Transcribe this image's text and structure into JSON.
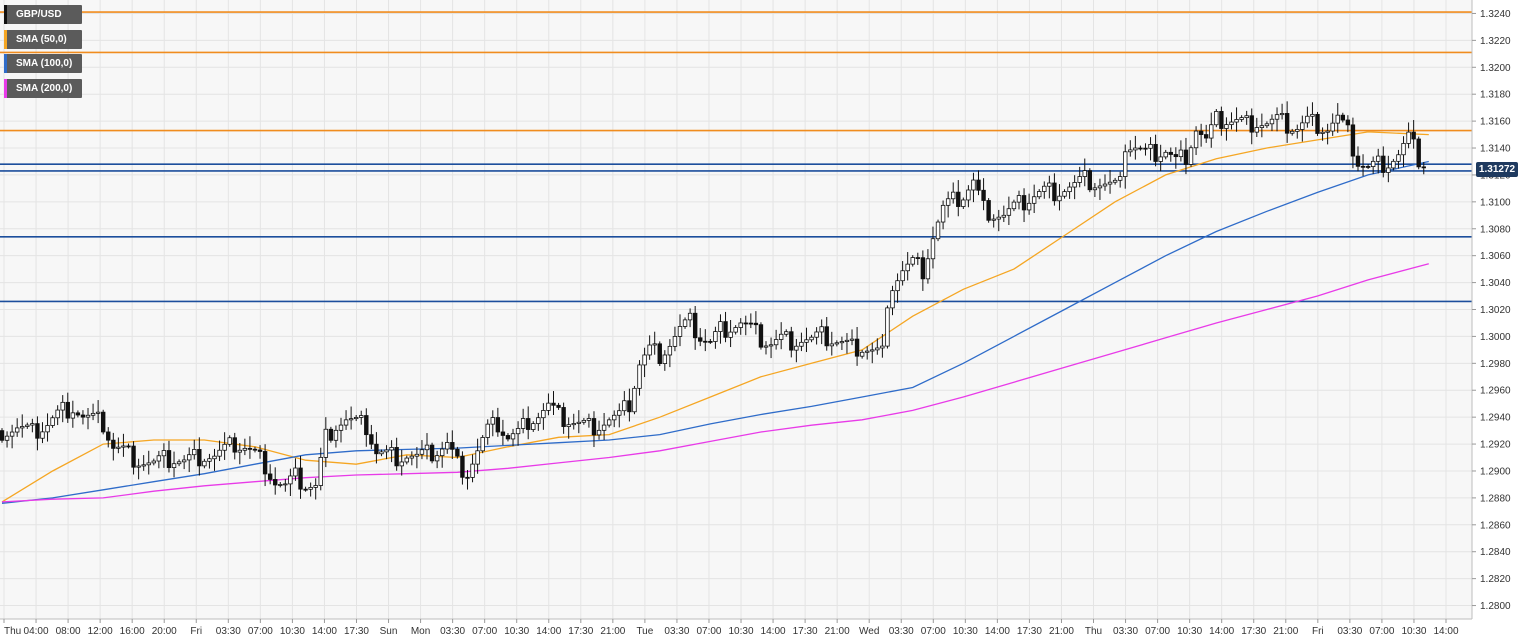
{
  "instrument": "GBP/USD",
  "colors": {
    "background": "#f7f7f7",
    "grid": "#e4e4e4",
    "candle": "#111111",
    "resistance": "#f08c1e",
    "support": "#1c4e9c",
    "sma50": "#f5a623",
    "sma100": "#2f6cc9",
    "sma200": "#e83be8",
    "price_tag": "#1f3a5f"
  },
  "legend": [
    {
      "label": "GBP/USD",
      "color": "#111111"
    },
    {
      "label": "SMA (50,0)",
      "color": "#f5a623"
    },
    {
      "label": "SMA (100,0)",
      "color": "#2f6cc9"
    },
    {
      "label": "SMA (200,0)",
      "color": "#e83be8"
    }
  ],
  "current_price_label": "1.31272",
  "chart_data": {
    "type": "line",
    "title": "",
    "xlabel": "",
    "ylabel": "",
    "ylim": [
      1.279,
      1.325
    ],
    "grid": true,
    "legend_position": "top-left",
    "x_tick_labels": [
      "Thu",
      "04:00",
      "08:00",
      "12:00",
      "16:00",
      "20:00",
      "Fri",
      "03:30",
      "07:00",
      "10:30",
      "14:00",
      "17:30",
      "Sun",
      "Mon",
      "03:30",
      "07:00",
      "10:30",
      "14:00",
      "17:30",
      "21:00",
      "Tue",
      "03:30",
      "07:00",
      "10:30",
      "14:00",
      "17:30",
      "21:00",
      "Wed",
      "03:30",
      "07:00",
      "10:30",
      "14:00",
      "17:30",
      "21:00",
      "Thu",
      "03:30",
      "07:00",
      "10:30",
      "14:00",
      "17:30",
      "21:00",
      "Fri",
      "03:30",
      "07:00",
      "10:30",
      "14:00"
    ],
    "y_tick_labels": [
      "1.3240",
      "1.3220",
      "1.3200",
      "1.3180",
      "1.3160",
      "1.3140",
      "1.3120",
      "1.3100",
      "1.3080",
      "1.3060",
      "1.3040",
      "1.3020",
      "1.3000",
      "1.2980",
      "1.2960",
      "1.2940",
      "1.2920",
      "1.2900",
      "1.2880",
      "1.2860",
      "1.2840",
      "1.2820",
      "1.2800"
    ],
    "y_ticks": [
      1.324,
      1.322,
      1.32,
      1.318,
      1.316,
      1.314,
      1.312,
      1.31,
      1.308,
      1.306,
      1.304,
      1.302,
      1.3,
      1.298,
      1.296,
      1.294,
      1.292,
      1.29,
      1.288,
      1.286,
      1.284,
      1.282,
      1.28
    ],
    "horizontal_levels": [
      {
        "value": 1.3241,
        "kind": "resistance"
      },
      {
        "value": 1.3211,
        "kind": "resistance"
      },
      {
        "value": 1.3153,
        "kind": "resistance"
      },
      {
        "value": 1.3128,
        "kind": "support"
      },
      {
        "value": 1.3123,
        "kind": "support"
      },
      {
        "value": 1.3074,
        "kind": "support"
      },
      {
        "value": 1.3026,
        "kind": "support"
      }
    ],
    "close_series": [
      [
        0,
        1.293
      ],
      [
        3,
        1.2932
      ],
      [
        6,
        1.2928
      ],
      [
        9,
        1.2935
      ],
      [
        12,
        1.2945
      ],
      [
        14,
        1.2948
      ],
      [
        16,
        1.294
      ],
      [
        18,
        1.2938
      ],
      [
        20,
        1.2935
      ],
      [
        22,
        1.2918
      ],
      [
        24,
        1.2915
      ],
      [
        26,
        1.291
      ],
      [
        28,
        1.2907
      ],
      [
        30,
        1.2905
      ],
      [
        32,
        1.2908
      ],
      [
        34,
        1.2909
      ],
      [
        36,
        1.2907
      ],
      [
        38,
        1.291
      ],
      [
        40,
        1.2912
      ],
      [
        42,
        1.2911
      ],
      [
        44,
        1.2915
      ],
      [
        46,
        1.292
      ],
      [
        48,
        1.2918
      ],
      [
        50,
        1.2912
      ],
      [
        52,
        1.2905
      ],
      [
        54,
        1.2892
      ],
      [
        56,
        1.2888
      ],
      [
        58,
        1.2895
      ],
      [
        60,
        1.289
      ],
      [
        62,
        1.2888
      ],
      [
        64,
        1.2925
      ],
      [
        66,
        1.2935
      ],
      [
        68,
        1.2938
      ],
      [
        70,
        1.2935
      ],
      [
        72,
        1.2933
      ],
      [
        74,
        1.2914
      ],
      [
        76,
        1.2912
      ],
      [
        78,
        1.2911
      ],
      [
        80,
        1.2912
      ],
      [
        82,
        1.291
      ],
      [
        84,
        1.2912
      ],
      [
        86,
        1.2915
      ],
      [
        88,
        1.292
      ],
      [
        90,
        1.2905
      ],
      [
        92,
        1.29
      ],
      [
        94,
        1.2915
      ],
      [
        96,
        1.293
      ],
      [
        98,
        1.2935
      ],
      [
        100,
        1.2925
      ],
      [
        102,
        1.2928
      ],
      [
        104,
        1.2938
      ],
      [
        106,
        1.2942
      ],
      [
        108,
        1.2948
      ],
      [
        110,
        1.294
      ],
      [
        112,
        1.2938
      ],
      [
        114,
        1.2935
      ],
      [
        116,
        1.2933
      ],
      [
        118,
        1.2935
      ],
      [
        120,
        1.2938
      ],
      [
        122,
        1.294
      ],
      [
        124,
        1.295
      ],
      [
        126,
        1.298
      ],
      [
        128,
        1.299
      ],
      [
        130,
        1.2987
      ],
      [
        132,
        1.2995
      ],
      [
        134,
        1.3005
      ],
      [
        136,
        1.301
      ],
      [
        138,
        1.3
      ],
      [
        140,
        1.2995
      ],
      [
        142,
        1.3005
      ],
      [
        144,
        1.3008
      ],
      [
        146,
        1.301
      ],
      [
        148,
        1.3005
      ],
      [
        150,
        1.2998
      ],
      [
        152,
        1.2995
      ],
      [
        154,
        1.2998
      ],
      [
        156,
        1.2997
      ],
      [
        158,
        1.2998
      ],
      [
        160,
        1.2997
      ],
      [
        162,
        1.3
      ],
      [
        164,
        1.2998
      ],
      [
        166,
        1.2995
      ],
      [
        168,
        1.2992
      ],
      [
        170,
        1.2993
      ],
      [
        172,
        1.299
      ],
      [
        174,
        1.2988
      ],
      [
        176,
        1.304
      ],
      [
        178,
        1.305
      ],
      [
        180,
        1.3055
      ],
      [
        182,
        1.305
      ],
      [
        184,
        1.3075
      ],
      [
        186,
        1.3095
      ],
      [
        188,
        1.31
      ],
      [
        190,
        1.3105
      ],
      [
        192,
        1.3115
      ],
      [
        194,
        1.3095
      ],
      [
        196,
        1.3092
      ],
      [
        198,
        1.309
      ],
      [
        200,
        1.3095
      ],
      [
        202,
        1.31
      ],
      [
        204,
        1.3105
      ],
      [
        206,
        1.3108
      ],
      [
        208,
        1.3108
      ],
      [
        210,
        1.311
      ],
      [
        212,
        1.3112
      ],
      [
        214,
        1.3116
      ],
      [
        216,
        1.3114
      ],
      [
        218,
        1.3112
      ],
      [
        220,
        1.311
      ],
      [
        222,
        1.3142
      ],
      [
        224,
        1.314
      ],
      [
        226,
        1.3135
      ],
      [
        228,
        1.3136
      ],
      [
        230,
        1.3138
      ],
      [
        232,
        1.313
      ],
      [
        234,
        1.3135
      ],
      [
        236,
        1.3155
      ],
      [
        238,
        1.3145
      ],
      [
        240,
        1.316
      ],
      [
        242,
        1.3161
      ],
      [
        244,
        1.316
      ],
      [
        246,
        1.3158
      ],
      [
        248,
        1.316
      ],
      [
        250,
        1.3158
      ],
      [
        252,
        1.316
      ],
      [
        254,
        1.3157
      ],
      [
        256,
        1.3155
      ],
      [
        258,
        1.316
      ],
      [
        260,
        1.3158
      ],
      [
        262,
        1.3155
      ],
      [
        264,
        1.3162
      ],
      [
        266,
        1.315
      ],
      [
        268,
        1.313
      ],
      [
        270,
        1.3125
      ],
      [
        272,
        1.3128
      ],
      [
        274,
        1.313
      ],
      [
        276,
        1.3135
      ],
      [
        278,
        1.3147
      ],
      [
        280,
        1.3132
      ],
      [
        282,
        1.3127
      ]
    ],
    "series": [
      {
        "name": "SMA (50,0)",
        "color": "#f5a623",
        "points": [
          [
            0,
            1.2877
          ],
          [
            10,
            1.29
          ],
          [
            20,
            1.292
          ],
          [
            30,
            1.2923
          ],
          [
            40,
            1.2923
          ],
          [
            50,
            1.2918
          ],
          [
            60,
            1.2908
          ],
          [
            70,
            1.2905
          ],
          [
            80,
            1.2912
          ],
          [
            90,
            1.291
          ],
          [
            100,
            1.2918
          ],
          [
            110,
            1.2925
          ],
          [
            120,
            1.2927
          ],
          [
            130,
            1.294
          ],
          [
            140,
            1.2955
          ],
          [
            150,
            1.297
          ],
          [
            160,
            1.298
          ],
          [
            170,
            1.299
          ],
          [
            180,
            1.3015
          ],
          [
            190,
            1.3035
          ],
          [
            200,
            1.305
          ],
          [
            210,
            1.3075
          ],
          [
            220,
            1.31
          ],
          [
            230,
            1.312
          ],
          [
            240,
            1.3132
          ],
          [
            250,
            1.314
          ],
          [
            260,
            1.3146
          ],
          [
            270,
            1.3152
          ],
          [
            282,
            1.315
          ]
        ]
      },
      {
        "name": "SMA (100,0)",
        "color": "#2f6cc9",
        "points": [
          [
            0,
            1.2876
          ],
          [
            10,
            1.288
          ],
          [
            20,
            1.2886
          ],
          [
            30,
            1.2892
          ],
          [
            40,
            1.2898
          ],
          [
            50,
            1.2905
          ],
          [
            60,
            1.2912
          ],
          [
            70,
            1.2915
          ],
          [
            80,
            1.2916
          ],
          [
            90,
            1.2917
          ],
          [
            100,
            1.2919
          ],
          [
            110,
            1.2921
          ],
          [
            120,
            1.2923
          ],
          [
            130,
            1.2927
          ],
          [
            140,
            1.2935
          ],
          [
            150,
            1.2942
          ],
          [
            160,
            1.2948
          ],
          [
            170,
            1.2955
          ],
          [
            180,
            1.2962
          ],
          [
            190,
            1.298
          ],
          [
            200,
            1.3
          ],
          [
            210,
            1.302
          ],
          [
            220,
            1.304
          ],
          [
            230,
            1.306
          ],
          [
            240,
            1.3078
          ],
          [
            250,
            1.3093
          ],
          [
            260,
            1.3107
          ],
          [
            270,
            1.312
          ],
          [
            282,
            1.313
          ]
        ]
      },
      {
        "name": "SMA (200,0)",
        "color": "#e83be8",
        "points": [
          [
            0,
            1.2877
          ],
          [
            10,
            1.2879
          ],
          [
            20,
            1.288
          ],
          [
            30,
            1.2885
          ],
          [
            40,
            1.2889
          ],
          [
            50,
            1.2892
          ],
          [
            60,
            1.2895
          ],
          [
            70,
            1.2897
          ],
          [
            80,
            1.2898
          ],
          [
            90,
            1.2899
          ],
          [
            100,
            1.2902
          ],
          [
            110,
            1.2906
          ],
          [
            120,
            1.291
          ],
          [
            130,
            1.2915
          ],
          [
            140,
            1.2922
          ],
          [
            150,
            1.2929
          ],
          [
            160,
            1.2934
          ],
          [
            170,
            1.2938
          ],
          [
            180,
            1.2945
          ],
          [
            190,
            1.2955
          ],
          [
            200,
            1.2966
          ],
          [
            210,
            1.2977
          ],
          [
            220,
            1.2988
          ],
          [
            230,
            1.2999
          ],
          [
            240,
            1.301
          ],
          [
            250,
            1.302
          ],
          [
            260,
            1.303
          ],
          [
            270,
            1.3042
          ],
          [
            282,
            1.3054
          ]
        ]
      }
    ]
  }
}
